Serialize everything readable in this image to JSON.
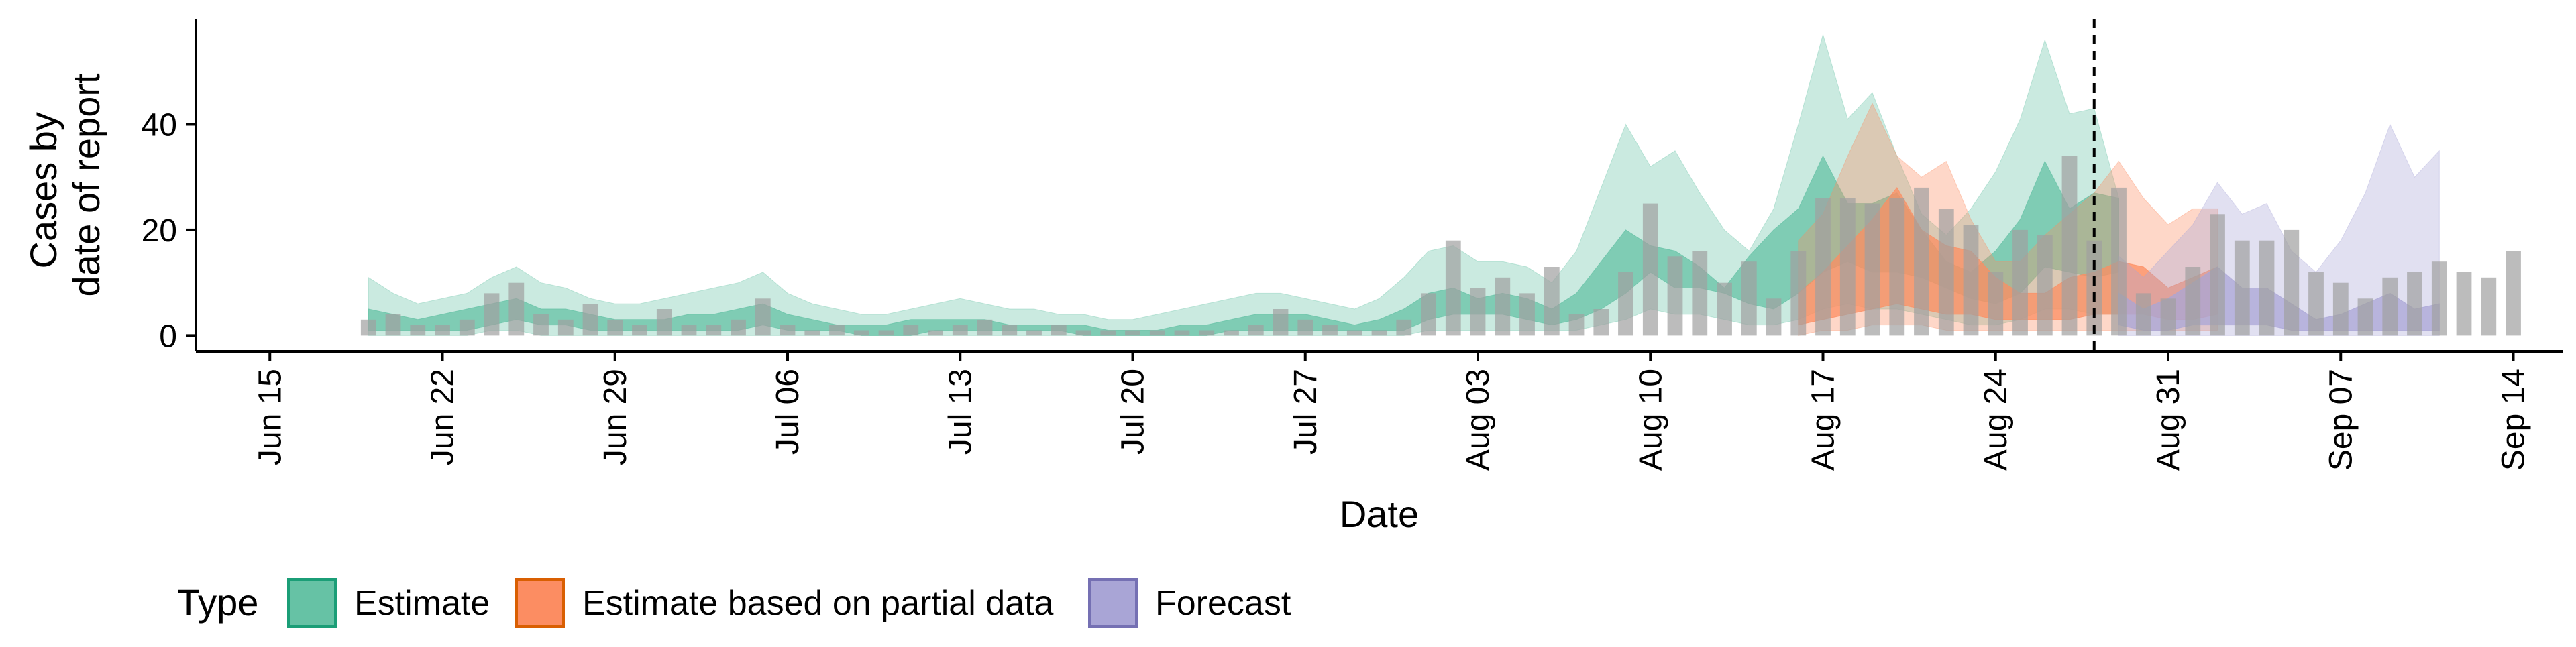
{
  "chart_data": {
    "type": "area",
    "xlabel": "Date",
    "ylabel_lines": [
      "Cases by",
      "date of report"
    ],
    "x_range": [
      "2020-06-12",
      "2020-09-16"
    ],
    "ylim": [
      -3,
      60
    ],
    "y_ticks": [
      0,
      20,
      40
    ],
    "x_ticks": [
      {
        "date": "2020-06-15",
        "label": "Jun 15"
      },
      {
        "date": "2020-06-22",
        "label": "Jun 22"
      },
      {
        "date": "2020-06-29",
        "label": "Jun 29"
      },
      {
        "date": "2020-07-06",
        "label": "Jul 06"
      },
      {
        "date": "2020-07-13",
        "label": "Jul 13"
      },
      {
        "date": "2020-07-20",
        "label": "Jul 20"
      },
      {
        "date": "2020-07-27",
        "label": "Jul 27"
      },
      {
        "date": "2020-08-03",
        "label": "Aug 03"
      },
      {
        "date": "2020-08-10",
        "label": "Aug 10"
      },
      {
        "date": "2020-08-17",
        "label": "Aug 17"
      },
      {
        "date": "2020-08-24",
        "label": "Aug 24"
      },
      {
        "date": "2020-08-31",
        "label": "Aug 31"
      },
      {
        "date": "2020-09-07",
        "label": "Sep 07"
      },
      {
        "date": "2020-09-14",
        "label": "Sep 14"
      }
    ],
    "grid": false,
    "legend_placement": "bottom-left",
    "legend": {
      "title": "Type",
      "items": [
        {
          "key": "estimate",
          "label": "Estimate",
          "fill": "#66c2a5",
          "stroke": "#1b9e77"
        },
        {
          "key": "partial",
          "label": "Estimate based on partial data",
          "fill": "#fc8d62",
          "stroke": "#d95f02"
        },
        {
          "key": "forecast",
          "label": "Forecast",
          "fill": "#a9a5d6",
          "stroke": "#7570b3"
        }
      ]
    },
    "vline_date": "2020-08-28",
    "bar_color": "#a0a0a0",
    "reported_cases": {
      "start_date": "2020-06-19",
      "values": [
        3,
        4,
        2,
        2,
        3,
        8,
        10,
        4,
        3,
        6,
        3,
        2,
        5,
        2,
        2,
        3,
        7,
        2,
        1,
        2,
        1,
        1,
        2,
        1,
        2,
        3,
        2,
        1,
        2,
        1,
        1,
        1,
        1,
        1,
        1,
        1,
        2,
        5,
        3,
        2,
        1,
        1,
        3,
        8,
        18,
        9,
        11,
        8,
        13,
        4,
        5,
        12,
        25,
        15,
        16,
        10,
        14,
        7,
        16,
        26,
        26,
        25,
        26,
        28,
        24,
        21,
        12,
        20,
        19,
        34,
        18,
        28,
        8,
        7,
        13,
        23,
        18,
        18,
        20,
        12,
        10,
        7,
        11,
        12,
        14,
        12,
        11,
        16
      ],
      "partial_bar_count": 13
    },
    "series": [
      {
        "key": "estimate",
        "start_date": "2020-06-19",
        "inner_low": [
          1,
          1,
          1,
          1,
          1,
          2,
          3,
          2,
          2,
          1,
          1,
          1,
          1,
          1,
          1,
          1,
          2,
          1,
          1,
          1,
          0,
          0,
          0,
          1,
          1,
          1,
          1,
          1,
          1,
          0,
          0,
          0,
          0,
          0,
          0,
          1,
          1,
          1,
          1,
          1,
          1,
          1,
          1,
          3,
          4,
          4,
          4,
          3,
          2,
          3,
          5,
          8,
          12,
          9,
          9,
          8,
          6,
          5,
          8,
          12,
          14,
          12,
          12,
          11,
          9,
          7,
          6,
          8,
          13,
          12,
          11,
          12
        ],
        "inner_high": [
          5,
          4,
          3,
          4,
          5,
          6,
          7,
          5,
          5,
          4,
          3,
          3,
          3,
          4,
          4,
          5,
          6,
          4,
          3,
          2,
          2,
          2,
          3,
          3,
          3,
          3,
          2,
          2,
          2,
          2,
          1,
          1,
          1,
          2,
          2,
          3,
          4,
          4,
          4,
          3,
          2,
          3,
          5,
          8,
          9,
          7,
          8,
          7,
          5,
          8,
          14,
          20,
          17,
          16,
          13,
          9,
          15,
          20,
          24,
          34,
          25,
          25,
          27,
          20,
          14,
          12,
          16,
          22,
          33,
          24,
          27,
          26
        ],
        "outer_low": [
          0,
          0,
          0,
          0,
          0,
          1,
          1,
          0,
          0,
          0,
          0,
          0,
          0,
          0,
          0,
          0,
          0,
          0,
          0,
          0,
          0,
          0,
          0,
          0,
          0,
          0,
          0,
          0,
          0,
          0,
          0,
          0,
          0,
          0,
          0,
          0,
          0,
          0,
          0,
          0,
          0,
          0,
          0,
          1,
          1,
          1,
          1,
          1,
          1,
          1,
          2,
          3,
          5,
          4,
          4,
          3,
          2,
          2,
          3,
          5,
          6,
          5,
          5,
          4,
          3,
          2,
          2,
          3,
          5,
          5,
          4,
          4
        ],
        "outer_high": [
          11,
          8,
          6,
          7,
          8,
          11,
          13,
          10,
          9,
          7,
          6,
          6,
          7,
          8,
          9,
          10,
          12,
          8,
          6,
          5,
          4,
          4,
          5,
          6,
          7,
          6,
          5,
          5,
          4,
          4,
          3,
          3,
          4,
          5,
          6,
          7,
          8,
          8,
          7,
          6,
          5,
          7,
          11,
          16,
          17,
          14,
          14,
          13,
          10,
          16,
          28,
          40,
          32,
          35,
          27,
          20,
          16,
          24,
          40,
          57,
          41,
          46,
          34,
          23,
          19,
          24,
          31,
          41,
          56,
          42,
          43,
          26
        ]
      },
      {
        "key": "partial",
        "start_date": "2020-08-16",
        "inner_low": [
          2,
          3,
          4,
          5,
          6,
          5,
          4,
          4,
          3,
          3,
          3,
          3,
          4,
          4,
          4,
          3,
          3,
          4
        ],
        "inner_high": [
          8,
          12,
          17,
          22,
          28,
          20,
          17,
          16,
          11,
          8,
          8,
          11,
          12,
          14,
          13,
          9,
          11,
          13
        ],
        "outer_low": [
          0,
          1,
          1,
          2,
          2,
          2,
          1,
          1,
          1,
          1,
          1,
          1,
          1,
          1,
          1,
          1,
          1,
          1
        ],
        "outer_high": [
          18,
          23,
          34,
          44,
          34,
          30,
          33,
          22,
          14,
          14,
          19,
          23,
          27,
          33,
          26,
          21,
          24,
          24
        ]
      },
      {
        "key": "forecast",
        "start_date": "2020-08-29",
        "inner_low": [
          2,
          1,
          1,
          2,
          2,
          2,
          2,
          1,
          1,
          1,
          1,
          1,
          1,
          1
        ],
        "inner_high": [
          8,
          5,
          7,
          10,
          13,
          9,
          9,
          6,
          3,
          4,
          6,
          8,
          5,
          6
        ],
        "outer_low": [
          0,
          0,
          0,
          0,
          0,
          0,
          0,
          0,
          0,
          0,
          0,
          0,
          0,
          0
        ],
        "outer_high": [
          15,
          11,
          16,
          21,
          29,
          23,
          25,
          16,
          12,
          18,
          27,
          40,
          30,
          35
        ]
      }
    ]
  }
}
